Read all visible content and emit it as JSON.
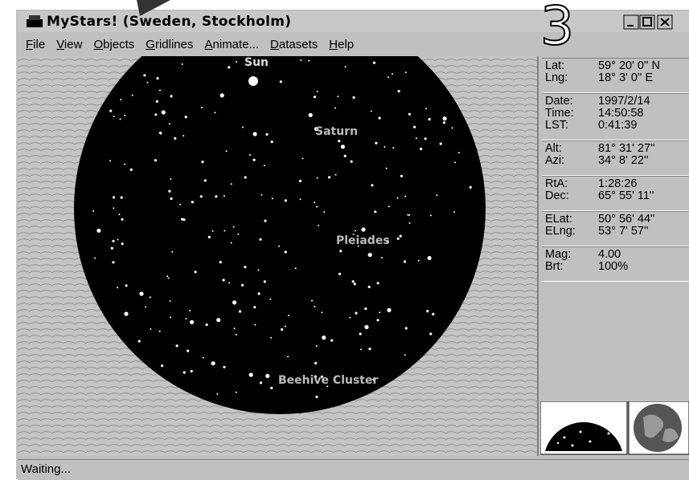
{
  "window": {
    "title": "MyStars! (Sweden, Stockholm)"
  },
  "annotation": "3",
  "menu": [
    "File",
    "View",
    "Objects",
    "Gridlines",
    "Animate...",
    "Datasets",
    "Help"
  ],
  "sky": {
    "labels": [
      "Sun",
      "Saturn",
      "Pleiades",
      "Beehive Cluster"
    ]
  },
  "info": {
    "groups": [
      [
        [
          "Lat:",
          "59° 20' 0'' N"
        ],
        [
          "Lng:",
          "18° 3' 0'' E"
        ]
      ],
      [
        [
          "Date:",
          "1997/2/14"
        ],
        [
          "Time:",
          "14:50:58"
        ],
        [
          "LST:",
          "0:41:39"
        ]
      ],
      [
        [
          "Alt:",
          "81° 31' 27''"
        ],
        [
          "Azi:",
          "34° 8' 22''"
        ]
      ],
      [
        [
          "RtA:",
          "1:28:26"
        ],
        [
          "Dec:",
          "65° 55' 11''"
        ]
      ],
      [
        [
          "ELat:",
          "50° 56' 44''"
        ],
        [
          "ELng:",
          "53° 7' 57''"
        ]
      ],
      [
        [
          "Mag:",
          "4.00"
        ],
        [
          "Brt:",
          "100%"
        ]
      ]
    ]
  },
  "status": "Waiting..."
}
